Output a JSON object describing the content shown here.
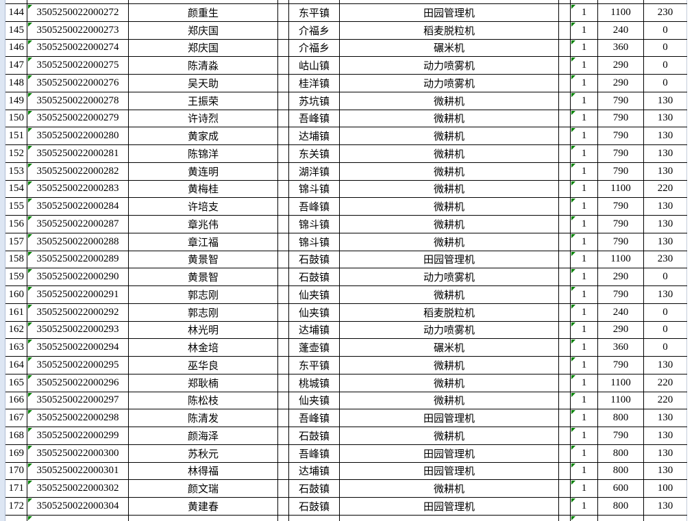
{
  "app": {
    "type": "spreadsheet-grid"
  },
  "colors": {
    "cell_border": "#000000",
    "gutter_background": "#dde6f3",
    "error_indicator_green": "#008000",
    "faint_gridline": "#c3ccdb",
    "cell_background": "#ffffff",
    "text": "#000000"
  },
  "table": {
    "column_keys": [
      "seq",
      "id",
      "name",
      "town",
      "machine",
      "qty",
      "price",
      "subsidy"
    ],
    "rows": [
      [
        "144",
        "3505250022000272",
        "颜重生",
        "东平镇",
        "田园管理机",
        "1",
        "1100",
        "230"
      ],
      [
        "145",
        "3505250022000273",
        "郑庆国",
        "介福乡",
        "稻麦脱粒机",
        "1",
        "240",
        "0"
      ],
      [
        "146",
        "3505250022000274",
        "郑庆国",
        "介福乡",
        "碾米机",
        "1",
        "360",
        "0"
      ],
      [
        "147",
        "3505250022000275",
        "陈清淼",
        "岵山镇",
        "动力喷雾机",
        "1",
        "290",
        "0"
      ],
      [
        "148",
        "3505250022000276",
        "吴天助",
        "桂洋镇",
        "动力喷雾机",
        "1",
        "290",
        "0"
      ],
      [
        "149",
        "3505250022000278",
        "王振荣",
        "苏坑镇",
        "微耕机",
        "1",
        "790",
        "130"
      ],
      [
        "150",
        "3505250022000279",
        "许诗烈",
        "吾峰镇",
        "微耕机",
        "1",
        "790",
        "130"
      ],
      [
        "151",
        "3505250022000280",
        "黄家成",
        "达埔镇",
        "微耕机",
        "1",
        "790",
        "130"
      ],
      [
        "152",
        "3505250022000281",
        "陈锦洋",
        "东关镇",
        "微耕机",
        "1",
        "790",
        "130"
      ],
      [
        "153",
        "3505250022000282",
        "黄连明",
        "湖洋镇",
        "微耕机",
        "1",
        "790",
        "130"
      ],
      [
        "154",
        "3505250022000283",
        "黄梅桂",
        "锦斗镇",
        "微耕机",
        "1",
        "1100",
        "220"
      ],
      [
        "155",
        "3505250022000284",
        "许培支",
        "吾峰镇",
        "微耕机",
        "1",
        "790",
        "130"
      ],
      [
        "156",
        "3505250022000287",
        "章兆伟",
        "锦斗镇",
        "微耕机",
        "1",
        "790",
        "130"
      ],
      [
        "157",
        "3505250022000288",
        "章江福",
        "锦斗镇",
        "微耕机",
        "1",
        "790",
        "130"
      ],
      [
        "158",
        "3505250022000289",
        "黄景智",
        "石鼓镇",
        "田园管理机",
        "1",
        "1100",
        "230"
      ],
      [
        "159",
        "3505250022000290",
        "黄景智",
        "石鼓镇",
        "动力喷雾机",
        "1",
        "290",
        "0"
      ],
      [
        "160",
        "3505250022000291",
        "郭志刚",
        "仙夹镇",
        "微耕机",
        "1",
        "790",
        "130"
      ],
      [
        "161",
        "3505250022000292",
        "郭志刚",
        "仙夹镇",
        "稻麦脱粒机",
        "1",
        "240",
        "0"
      ],
      [
        "162",
        "3505250022000293",
        "林光明",
        "达埔镇",
        "动力喷雾机",
        "1",
        "290",
        "0"
      ],
      [
        "163",
        "3505250022000294",
        "林金培",
        "蓬壶镇",
        "碾米机",
        "1",
        "360",
        "0"
      ],
      [
        "164",
        "3505250022000295",
        "巫华良",
        "东平镇",
        "微耕机",
        "1",
        "790",
        "130"
      ],
      [
        "165",
        "3505250022000296",
        "郑耿楠",
        "桃城镇",
        "微耕机",
        "1",
        "1100",
        "220"
      ],
      [
        "166",
        "3505250022000297",
        "陈松枝",
        "仙夹镇",
        "微耕机",
        "1",
        "1100",
        "220"
      ],
      [
        "167",
        "3505250022000298",
        "陈清发",
        "吾峰镇",
        "田园管理机",
        "1",
        "800",
        "130"
      ],
      [
        "168",
        "3505250022000299",
        "颜海泽",
        "石鼓镇",
        "微耕机",
        "1",
        "790",
        "130"
      ],
      [
        "169",
        "3505250022000300",
        "苏秋元",
        "吾峰镇",
        "田园管理机",
        "1",
        "800",
        "130"
      ],
      [
        "170",
        "3505250022000301",
        "林得福",
        "达埔镇",
        "田园管理机",
        "1",
        "800",
        "130"
      ],
      [
        "171",
        "3505250022000302",
        "颜文瑞",
        "石鼓镇",
        "微耕机",
        "1",
        "600",
        "100"
      ],
      [
        "172",
        "3505250022000304",
        "黄建春",
        "石鼓镇",
        "田园管理机",
        "1",
        "800",
        "130"
      ]
    ]
  }
}
